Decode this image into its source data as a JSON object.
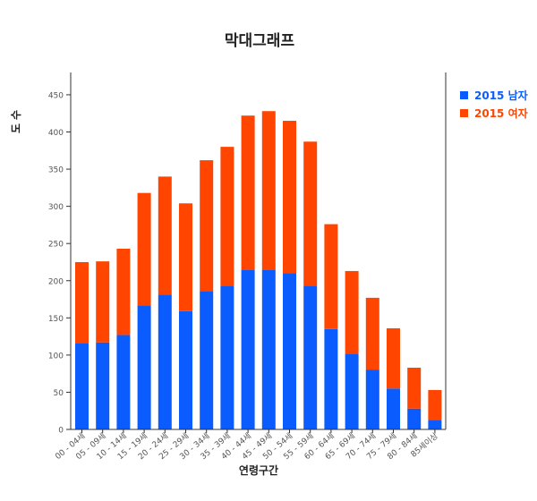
{
  "colors": {
    "male": "#0b5cff",
    "female": "#ff4500",
    "axis": "#333333",
    "tick_text": "#555555"
  },
  "chart_data": {
    "type": "bar",
    "stacked": true,
    "title": "막대그래프",
    "xlabel": "연령구간",
    "ylabel": "도수",
    "ylim": [
      0,
      480
    ],
    "yticks": [
      0,
      50,
      100,
      150,
      200,
      250,
      300,
      350,
      400,
      450
    ],
    "legend_position": "top-right",
    "grid": false,
    "categories": [
      "00 - 04세",
      "05 - 09세",
      "10 - 14세",
      "15 - 19세",
      "20 - 24세",
      "25 - 29세",
      "30 - 34세",
      "35 - 39세",
      "40 - 44세",
      "45 - 49세",
      "50 - 54세",
      "55 - 59세",
      "60 - 64세",
      "65 - 69세",
      "70 - 74세",
      "75 - 79세",
      "80 - 84세",
      "85세이상"
    ],
    "series": [
      {
        "name": "2015 남자",
        "color": "#0b5cff",
        "values": [
          116,
          117,
          127,
          167,
          181,
          159,
          186,
          193,
          215,
          215,
          210,
          193,
          135,
          102,
          80,
          55,
          28,
          13
        ]
      },
      {
        "name": "2015 여자",
        "color": "#ff4500",
        "values": [
          109,
          109,
          116,
          151,
          159,
          145,
          176,
          187,
          207,
          213,
          205,
          194,
          141,
          111,
          97,
          81,
          55,
          40
        ]
      }
    ]
  }
}
